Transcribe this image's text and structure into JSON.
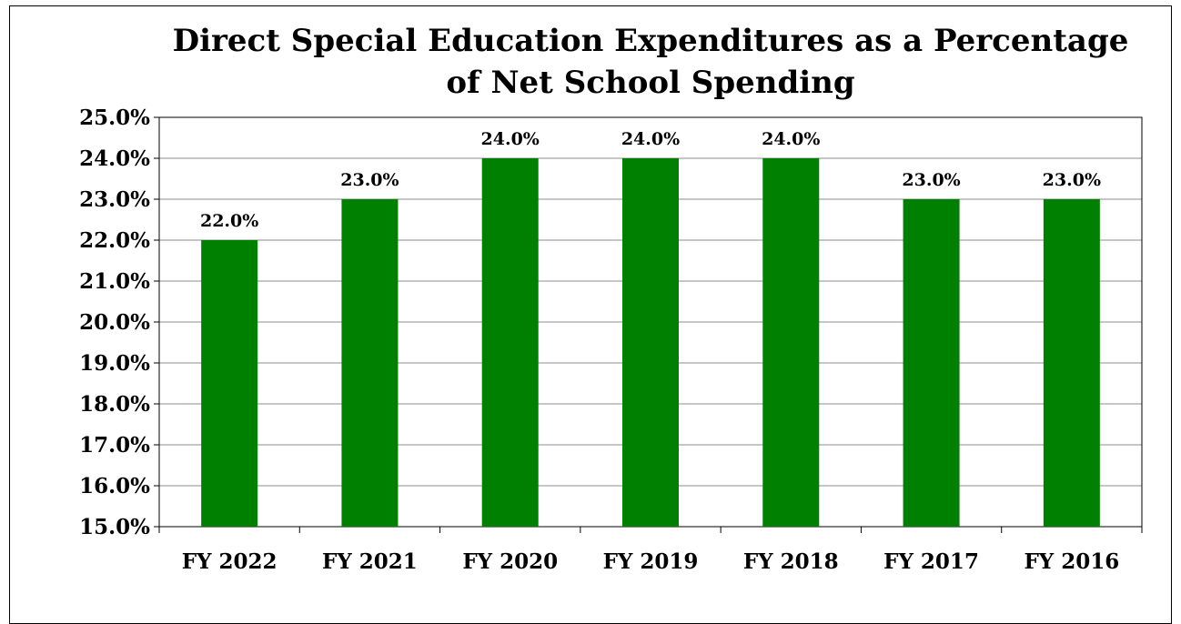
{
  "chart_data": {
    "type": "bar",
    "title": "Direct Special Education Expenditures as a Percentage of Net School Spending",
    "xlabel": "",
    "ylabel": "",
    "categories": [
      "FY 2022",
      "FY 2021",
      "FY 2020",
      "FY 2019",
      "FY 2018",
      "FY 2017",
      "FY 2016"
    ],
    "values": [
      22.0,
      23.0,
      24.0,
      24.0,
      24.0,
      23.0,
      23.0
    ],
    "data_labels": [
      "22.0%",
      "23.0%",
      "24.0%",
      "24.0%",
      "24.0%",
      "23.0%",
      "23.0%"
    ],
    "ylim": [
      15,
      25
    ],
    "y_ticks": [
      15,
      16,
      17,
      18,
      19,
      20,
      21,
      22,
      23,
      24,
      25
    ],
    "y_tick_labels": [
      "15.0%",
      "16.0%",
      "17.0%",
      "18.0%",
      "19.0%",
      "20.0%",
      "21.0%",
      "22.0%",
      "23.0%",
      "24.0%",
      "25.0%"
    ],
    "grid": true,
    "legend": "none",
    "bar_color": "#008000"
  }
}
